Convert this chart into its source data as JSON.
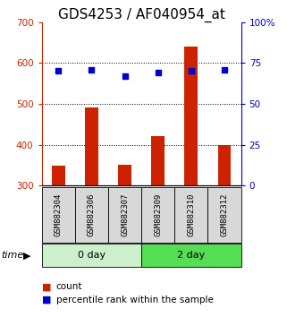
{
  "title": "GDS4253 / AF040954_at",
  "samples": [
    "GSM882304",
    "GSM882306",
    "GSM882307",
    "GSM882309",
    "GSM882310",
    "GSM882312"
  ],
  "counts": [
    348,
    490,
    350,
    420,
    640,
    400
  ],
  "percentiles": [
    70.0,
    71.0,
    67.0,
    69.0,
    70.5,
    71.0
  ],
  "left_ylim": [
    300,
    700
  ],
  "left_yticks": [
    300,
    400,
    500,
    600,
    700
  ],
  "right_ylim": [
    0,
    100
  ],
  "right_yticks": [
    0,
    25,
    50,
    75,
    100
  ],
  "right_yticklabels": [
    "0",
    "25",
    "50",
    "75",
    "100%"
  ],
  "bar_color": "#cc2200",
  "scatter_color": "#0000cc",
  "bar_bottom": 300,
  "title_fontsize": 11,
  "tick_fontsize": 7.5,
  "sample_fontsize": 6.5,
  "group_fontsize": 8,
  "legend_fontsize": 7.5,
  "grid_dotted_ticks": [
    400,
    500,
    600
  ],
  "group0_color": "#ccf0cc",
  "group1_color": "#55dd55",
  "gray_box_color": "#d8d8d8"
}
